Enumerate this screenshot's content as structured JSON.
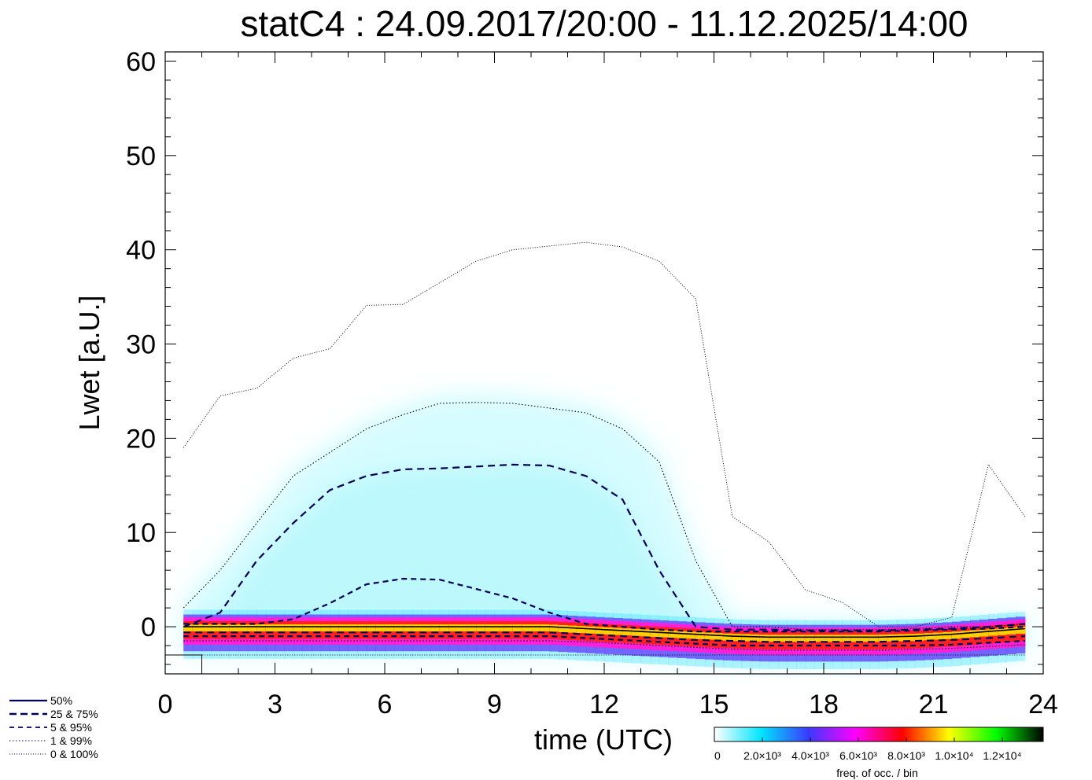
{
  "chart_data": {
    "type": "heatmap",
    "title": "statC4 : 24.09.2017/20:00 - 11.12.2025/14:00",
    "xlabel": "time (UTC)",
    "ylabel": "Lwet [a.U.]",
    "xlim": [
      0,
      24
    ],
    "ylim": [
      -5,
      61
    ],
    "x_ticks": [
      "0",
      "3",
      "6",
      "9",
      "12",
      "15",
      "18",
      "21",
      "24"
    ],
    "y_ticks": [
      "0",
      "10",
      "20",
      "30",
      "40",
      "50",
      "60"
    ],
    "legend": [
      {
        "label": "50%",
        "style": "solid"
      },
      {
        "label": "25 &  75%",
        "style": "dashed-long"
      },
      {
        "label": "5 &  95%",
        "style": "dashed"
      },
      {
        "label": "1 &  99%",
        "style": "dotted"
      },
      {
        "label": "0 & 100%",
        "style": "dotted-fine"
      }
    ],
    "colorbar": {
      "label": "freq. of occ. / bin",
      "ticks": [
        "0",
        "2.0×10³",
        "4.0×10³",
        "6.0×10³",
        "8.0×10³",
        "1.0×10⁴",
        "1.2×10⁴"
      ],
      "colors": [
        "#ffffff",
        "#00e5ff",
        "#3a3aff",
        "#ff00ff",
        "#ff0000",
        "#ffff00",
        "#00ff00",
        "#000000"
      ]
    },
    "x": [
      0.5,
      1.5,
      2.5,
      3.5,
      4.5,
      5.5,
      6.5,
      7.5,
      8.5,
      9.5,
      10.5,
      11.5,
      12.5,
      13.5,
      14.5,
      15.5,
      16.5,
      17.5,
      18.5,
      19.5,
      20.5,
      21.5,
      22.5,
      23.5
    ],
    "series": [
      {
        "name": "50%",
        "values": [
          0,
          0,
          0,
          0,
          0,
          0,
          0,
          0,
          0,
          0,
          0,
          -0.2,
          -0.4,
          -0.6,
          -0.8,
          -1,
          -1.1,
          -1.1,
          -1.1,
          -1.1,
          -1,
          -0.8,
          -0.5,
          -0.2
        ]
      },
      {
        "name": "25%",
        "values": [
          -0.6,
          -0.6,
          -0.6,
          -0.6,
          -0.6,
          -0.6,
          -0.6,
          -0.6,
          -0.6,
          -0.6,
          -0.6,
          -0.8,
          -1,
          -1.2,
          -1.4,
          -1.5,
          -1.6,
          -1.6,
          -1.6,
          -1.6,
          -1.5,
          -1.4,
          -1.2,
          -1
        ]
      },
      {
        "name": "75%",
        "values": [
          0,
          1.5,
          7,
          11,
          14.5,
          16,
          16.7,
          16.8,
          17,
          17.2,
          17.1,
          16,
          13.5,
          6,
          0,
          -0.3,
          -0.3,
          -0.4,
          -0.4,
          -0.4,
          -0.3,
          -0.2,
          0,
          0.3
        ]
      },
      {
        "name": "5%",
        "values": [
          -1,
          -1,
          -1,
          -1,
          -1,
          -1,
          -1,
          -1,
          -1,
          -1,
          -1,
          -1.2,
          -1.4,
          -1.6,
          -1.8,
          -2,
          -2,
          -2,
          -2,
          -2,
          -2,
          -1.9,
          -1.7,
          -1.5
        ]
      },
      {
        "name": "95%",
        "values": [
          0.3,
          0.3,
          0.3,
          0.8,
          2.5,
          4.5,
          5.1,
          5,
          4,
          3,
          1.5,
          0.3,
          0,
          -0.3,
          -0.5,
          -0.5,
          -0.5,
          -0.5,
          -0.5,
          -0.5,
          -0.4,
          -0.3,
          -0.2,
          0
        ]
      },
      {
        "name": "1%",
        "values": [
          -1.5,
          -1.5,
          -1.5,
          -1.5,
          -1.5,
          -1.5,
          -1.5,
          -1.5,
          -1.5,
          -1.5,
          -1.5,
          -1.6,
          -1.8,
          -2,
          -2.2,
          -2.4,
          -2.5,
          -2.5,
          -2.5,
          -2.5,
          -2.4,
          -2.3,
          -2.1,
          -1.9
        ]
      },
      {
        "name": "99%",
        "values": [
          2,
          6,
          11,
          16,
          18.5,
          21,
          22.5,
          23.7,
          23.8,
          23.7,
          23.2,
          22.7,
          21,
          17.5,
          7,
          0,
          0,
          -0.3,
          -0.3,
          -0.3,
          -0.2,
          0,
          0,
          0.3
        ]
      },
      {
        "name": "0%",
        "values": [
          -3,
          -3,
          -3,
          -3,
          -3,
          -3,
          -3,
          -3,
          -3,
          -3,
          -3,
          -3,
          -3,
          -3,
          -3,
          -3,
          -3,
          -3,
          -3,
          -3,
          -3,
          -3,
          -3,
          -3
        ]
      },
      {
        "name": "100%",
        "values": [
          19,
          24.5,
          25.3,
          28.5,
          29.5,
          34.1,
          34.2,
          36.5,
          38.8,
          40,
          40.4,
          40.8,
          40.3,
          38.8,
          34.8,
          11.7,
          9,
          3.9,
          2.6,
          0,
          0,
          1,
          17.2,
          11.7
        ]
      }
    ]
  }
}
